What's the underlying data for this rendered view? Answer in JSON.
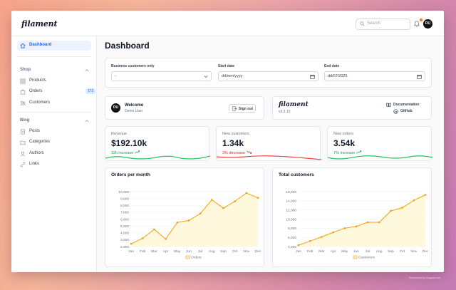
{
  "app": {
    "logo": "filament",
    "search_placeholder": "Search",
    "user_initials": "DU"
  },
  "sidebar": {
    "dashboard": "Dashboard",
    "shop_label": "Shop",
    "products": "Products",
    "orders": "Orders",
    "orders_badge": "172",
    "customers": "Customers",
    "blog_label": "Blog",
    "posts": "Posts",
    "categories": "Categories",
    "authors": "Authors",
    "links": "Links"
  },
  "page": {
    "title": "Dashboard"
  },
  "filters": {
    "business_label": "Business customers only",
    "business_value": "-",
    "start_label": "Start date",
    "start_value": "dd/mm/yyyy",
    "end_label": "End date",
    "end_value": "dd/07/2025"
  },
  "welcome": {
    "initials": "DU",
    "title": "Welcome",
    "user": "Demo User",
    "signout": "Sign out"
  },
  "info": {
    "logo": "filament",
    "version": "v3.3.13",
    "documentation": "Documentation",
    "github": "GitHub"
  },
  "stats": [
    {
      "label": "Revenue",
      "value": "$192.10k",
      "desc": "32k increase",
      "trend": "up",
      "color": "#22c55e"
    },
    {
      "label": "New customers",
      "value": "1.34k",
      "desc": "3% decrease",
      "trend": "down",
      "color": "#ef4444"
    },
    {
      "label": "New orders",
      "value": "3.54k",
      "desc": "7% increase",
      "trend": "up",
      "color": "#22c55e"
    }
  ],
  "chart_data": [
    {
      "type": "line",
      "title": "Orders per month",
      "categories": [
        "Jan",
        "Feb",
        "Mar",
        "Apr",
        "May",
        "Jun",
        "Jul",
        "Aug",
        "Sep",
        "Oct",
        "Nov",
        "Dec"
      ],
      "series": [
        {
          "name": "Orders",
          "values": [
            2400,
            3200,
            4500,
            3100,
            5500,
            5800,
            6800,
            8800,
            7600,
            8600,
            9800,
            9100
          ]
        }
      ],
      "ylim": [
        2000,
        10000
      ],
      "yticks": [
        2000,
        3000,
        4000,
        5000,
        6000,
        7000,
        8000,
        9000,
        10000
      ],
      "ytick_labels": [
        "2,000",
        "3,000",
        "4,000",
        "5,000",
        "6,000",
        "7,000",
        "8,000",
        "9,000",
        "10,000"
      ],
      "legend": "Orders",
      "color": "#f59e0b"
    },
    {
      "type": "line",
      "title": "Total customers",
      "categories": [
        "Jan",
        "Feb",
        "Mar",
        "Apr",
        "May",
        "Jun",
        "Jul",
        "Aug",
        "Sep",
        "Oct",
        "Nov",
        "Dec"
      ],
      "series": [
        {
          "name": "Customers",
          "values": [
            4300,
            5200,
            6100,
            7100,
            8000,
            8400,
            9300,
            9300,
            11800,
            12500,
            14100,
            15300
          ]
        }
      ],
      "ylim": [
        4000,
        16000
      ],
      "yticks": [
        4000,
        6000,
        8000,
        10000,
        12000,
        14000,
        16000
      ],
      "ytick_labels": [
        "4,000",
        "6,000",
        "8,000",
        "10,000",
        "12,000",
        "14,000",
        "16,000"
      ],
      "legend": "Customers",
      "color": "#f59e0b"
    }
  ],
  "footer": {
    "credit": "Screenshot by Xnapper.com"
  }
}
